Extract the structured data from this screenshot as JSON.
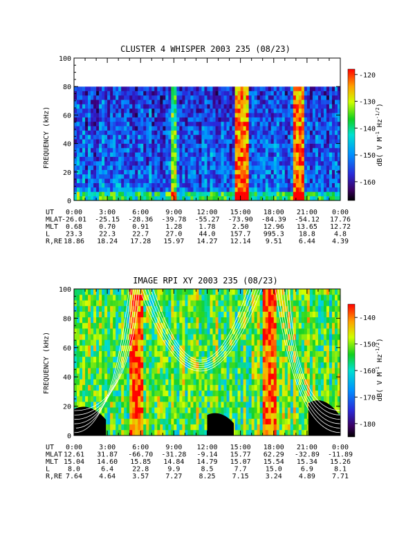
{
  "chart_data": [
    {
      "type": "heatmap",
      "title": "CLUSTER 4 WHISPER 2003 235 (08/23)",
      "ylabel": "FREQUENCY (kHz)",
      "ylim": [
        0,
        100
      ],
      "y_ticks": [
        0,
        20,
        40,
        60,
        80,
        100
      ],
      "data_upper_freq_khz": 80,
      "colorbar": {
        "label_main": "dB( V M",
        "label_exp1": "-1",
        "label_mid": " Hz",
        "label_exp2": "-1/2",
        "label_end": ")",
        "range": [
          -167,
          -118
        ],
        "ticks": [
          -120,
          -130,
          -140,
          -150,
          -160
        ]
      },
      "x_ticks": [
        "0:00",
        "3:00",
        "6:00",
        "9:00",
        "12:00",
        "15:00",
        "18:00",
        "21:00",
        "0:00"
      ],
      "ephemeris": [
        {
          "label": "UT",
          "values": [
            "0:00",
            "3:00",
            "6:00",
            "9:00",
            "12:00",
            "15:00",
            "18:00",
            "21:00",
            "0:00"
          ]
        },
        {
          "label": "MLAT",
          "values": [
            "-26.01",
            "-25.15",
            "-28.36",
            "-39.78",
            "-55.27",
            "-73.90",
            "-84.39",
            "-54.12",
            "17.76"
          ]
        },
        {
          "label": "MLT",
          "values": [
            "0.68",
            "0.70",
            "0.91",
            "1.28",
            "1.78",
            "2.50",
            "12.96",
            "13.65",
            "12.72"
          ]
        },
        {
          "label": "L",
          "values": [
            "23.3",
            "22.3",
            "22.7",
            "27.0",
            "44.0",
            "157.7",
            "995.3",
            "18.8",
            "4.8"
          ]
        },
        {
          "label": "R,RE",
          "values": [
            "18.86",
            "18.24",
            "17.28",
            "15.97",
            "14.27",
            "12.14",
            "9.51",
            "6.44",
            "4.39"
          ]
        }
      ]
    },
    {
      "type": "heatmap",
      "title": "IMAGE RPI XY 2003 235 (08/23)",
      "ylabel": "FREQUENCY (kHz)",
      "ylim": [
        0,
        100
      ],
      "y_ticks": [
        0,
        20,
        40,
        60,
        80,
        100
      ],
      "colorbar": {
        "label_main": "dB( V M",
        "label_exp1": "-1",
        "label_mid": " Hz",
        "label_exp2": "-1/2",
        "label_end": ")",
        "range": [
          -185,
          -135
        ],
        "ticks": [
          -140,
          -150,
          -160,
          -170,
          -180
        ]
      },
      "x_ticks": [
        "0:00",
        "3:00",
        "6:00",
        "9:00",
        "12:00",
        "15:00",
        "18:00",
        "21:00",
        "0:00"
      ],
      "ephemeris": [
        {
          "label": "UT",
          "values": [
            "0:00",
            "3:00",
            "6:00",
            "9:00",
            "12:00",
            "15:00",
            "18:00",
            "21:00",
            "0:00"
          ]
        },
        {
          "label": "MLAT",
          "values": [
            "12.61",
            "31.87",
            "-66.70",
            "-31.28",
            "-9.14",
            "15.77",
            "62.29",
            "-32.89",
            "-11.89"
          ]
        },
        {
          "label": "MLT",
          "values": [
            "15.04",
            "14.60",
            "15.85",
            "14.84",
            "14.79",
            "15.07",
            "15.54",
            "15.34",
            "15.26"
          ]
        },
        {
          "label": "L",
          "values": [
            "8.0",
            "6.4",
            "22.8",
            "9.9",
            "8.5",
            "7.7",
            "15.0",
            "6.9",
            "8.1"
          ]
        },
        {
          "label": "R,RE",
          "values": [
            "7.64",
            "4.64",
            "3.57",
            "7.27",
            "8.25",
            "7.15",
            "3.24",
            "4.89",
            "7.71"
          ]
        }
      ]
    }
  ]
}
